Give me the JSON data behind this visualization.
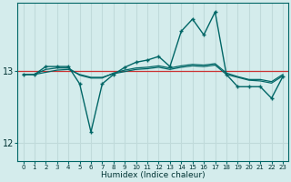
{
  "xlabel": "Humidex (Indice chaleur)",
  "ylabel": "",
  "background_color": "#d4ecec",
  "grid_color": "#c0dada",
  "line_color": "#006666",
  "red_line_color": "#cc3333",
  "x_values": [
    0,
    1,
    2,
    3,
    4,
    5,
    6,
    7,
    8,
    9,
    10,
    11,
    12,
    13,
    14,
    15,
    16,
    17,
    18,
    19,
    20,
    21,
    22,
    23
  ],
  "spiky_y": [
    12.95,
    12.95,
    13.06,
    13.06,
    13.06,
    12.82,
    12.15,
    12.82,
    12.95,
    13.05,
    13.12,
    13.15,
    13.2,
    13.06,
    13.55,
    13.72,
    13.5,
    13.82,
    12.95,
    12.78,
    12.78,
    12.78,
    12.62,
    12.92
  ],
  "smooth1_y": [
    12.95,
    12.95,
    13.02,
    13.04,
    13.04,
    12.94,
    12.9,
    12.9,
    12.97,
    13.01,
    13.04,
    13.05,
    13.07,
    13.04,
    13.07,
    13.09,
    13.08,
    13.1,
    12.97,
    12.92,
    12.88,
    12.88,
    12.85,
    12.95
  ],
  "smooth2_y": [
    12.95,
    12.95,
    12.98,
    13.01,
    13.02,
    12.95,
    12.91,
    12.91,
    12.96,
    12.99,
    13.02,
    13.03,
    13.05,
    13.02,
    13.05,
    13.07,
    13.06,
    13.08,
    12.95,
    12.91,
    12.87,
    12.86,
    12.83,
    12.93
  ],
  "red_y": 13.0,
  "ylim": [
    11.75,
    13.95
  ],
  "yticks": [
    12,
    13
  ],
  "xlim": [
    -0.5,
    23.5
  ],
  "xticks": [
    0,
    1,
    2,
    3,
    4,
    5,
    6,
    7,
    8,
    9,
    10,
    11,
    12,
    13,
    14,
    15,
    16,
    17,
    18,
    19,
    20,
    21,
    22,
    23
  ]
}
